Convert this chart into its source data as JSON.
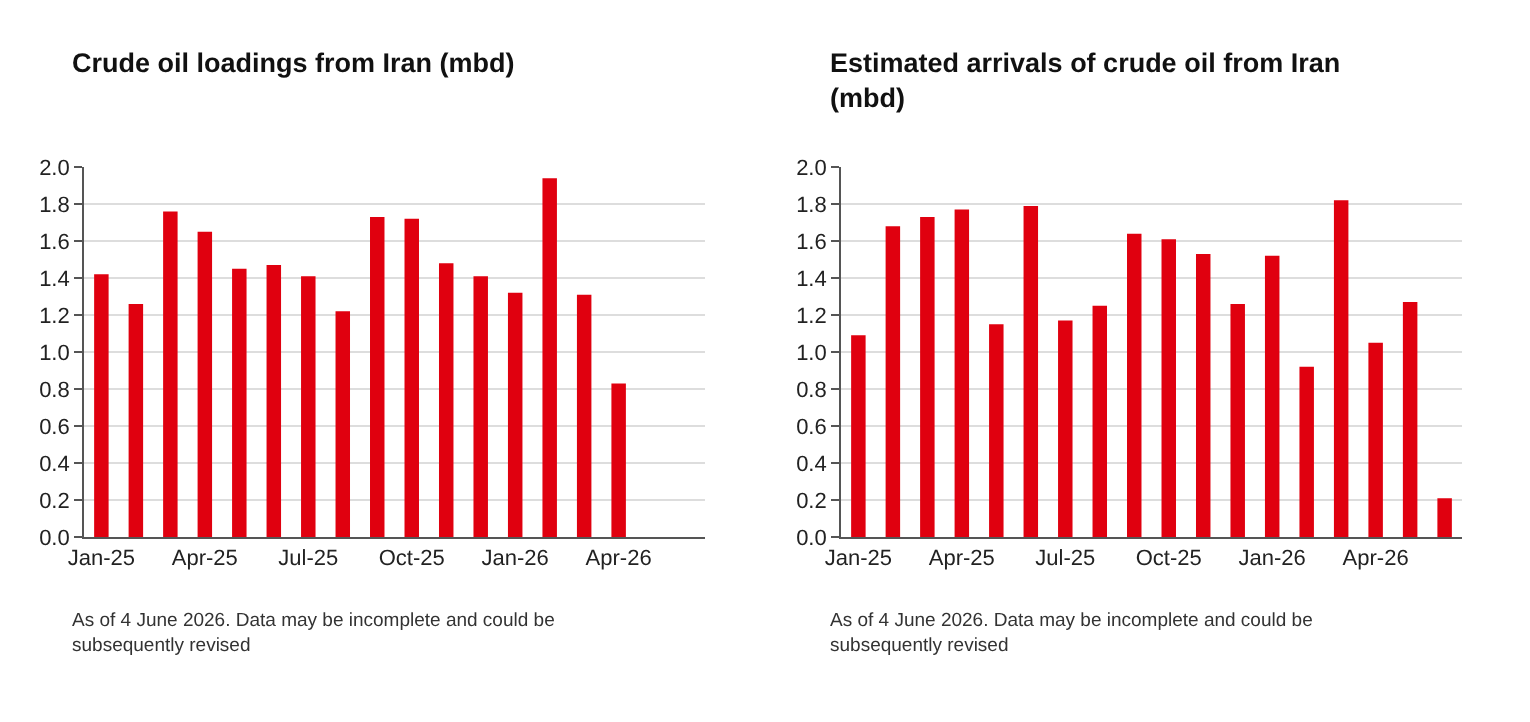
{
  "chart_data": [
    {
      "type": "bar",
      "title": "Crude oil loadings from Iran (mbd)",
      "categories": [
        "Jan-25",
        null,
        null,
        "Apr-25",
        null,
        null,
        "Jul-25",
        null,
        null,
        "Oct-25",
        null,
        null,
        "Jan-26",
        null,
        null,
        "Apr-26",
        null,
        null
      ],
      "values": [
        1.42,
        1.26,
        1.76,
        1.65,
        1.45,
        1.47,
        1.41,
        1.22,
        1.73,
        1.72,
        1.48,
        1.41,
        1.32,
        1.94,
        1.31,
        0.83,
        null,
        null
      ],
      "color": "#e0000f",
      "ylim": [
        0,
        2.0
      ],
      "yticks": [
        {
          "value": 0,
          "label": "0.0"
        },
        {
          "value": 0.2,
          "label": "0.2"
        },
        {
          "value": 0.4,
          "label": "0.4"
        },
        {
          "value": 0.6,
          "label": "0.6"
        },
        {
          "value": 0.8,
          "label": "0.8"
        },
        {
          "value": 1,
          "label": "1.0"
        },
        {
          "value": 1.2,
          "label": "1.2"
        },
        {
          "value": 1.4,
          "label": "1.4"
        },
        {
          "value": 1.6,
          "label": "1.6"
        },
        {
          "value": 1.8,
          "label": "1.8"
        },
        {
          "value": 2,
          "label": "2.0"
        }
      ],
      "grid": "y",
      "legend": false,
      "annotations": [
        "As of 4 June 2026. Data may be incomplete and could be subsequently revised"
      ]
    },
    {
      "type": "bar",
      "title": "Estimated arrivals of crude oil from Iran (mbd)",
      "categories": [
        "Jan-25",
        null,
        null,
        "Apr-25",
        null,
        null,
        "Jul-25",
        null,
        null,
        "Oct-25",
        null,
        null,
        "Jan-26",
        null,
        null,
        "Apr-26",
        null,
        null
      ],
      "values": [
        1.09,
        1.68,
        1.73,
        1.77,
        1.15,
        1.79,
        1.17,
        1.25,
        1.64,
        1.61,
        1.53,
        1.26,
        1.52,
        0.92,
        1.82,
        1.05,
        1.27,
        0.21
      ],
      "color": "#e0000f",
      "ylim": [
        0,
        2.0
      ],
      "yticks": [
        {
          "value": 0,
          "label": "0.0"
        },
        {
          "value": 0.2,
          "label": "0.2"
        },
        {
          "value": 0.4,
          "label": "0.4"
        },
        {
          "value": 0.6,
          "label": "0.6"
        },
        {
          "value": 0.8,
          "label": "0.8"
        },
        {
          "value": 1,
          "label": "1.0"
        },
        {
          "value": 1.2,
          "label": "1.2"
        },
        {
          "value": 1.4,
          "label": "1.4"
        },
        {
          "value": 1.6,
          "label": "1.6"
        },
        {
          "value": 1.8,
          "label": "1.8"
        },
        {
          "value": 2,
          "label": "2.0"
        }
      ],
      "grid": "y",
      "legend": false,
      "annotations": [
        "As of 4 June 2026. Data may be incomplete and could be subsequently revised"
      ]
    }
  ]
}
